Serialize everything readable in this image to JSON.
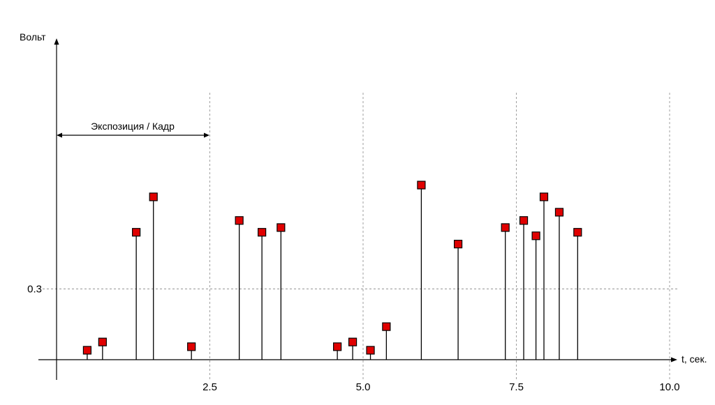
{
  "chart_data": {
    "type": "stem",
    "title": "",
    "xlabel": "t, сек.",
    "ylabel": "Вольт",
    "xlim": [
      0,
      10.0
    ],
    "ylim": [
      0,
      1.3
    ],
    "x_ticks": [
      2.5,
      5.0,
      7.5,
      10.0
    ],
    "x_tick_labels": [
      "2.5",
      "5.0",
      "7.5",
      "10.0"
    ],
    "y_ticks": [
      0.3
    ],
    "y_tick_labels": [
      "0.3"
    ],
    "grid": "dashed at ticks",
    "annotation": {
      "text": "Экспозиция / Кадр",
      "x_start": 0,
      "x_end": 2.5
    },
    "marker_color": "#e00000",
    "x": [
      0.5,
      0.75,
      1.3,
      1.58,
      2.2,
      2.98,
      3.35,
      3.66,
      4.58,
      4.83,
      5.12,
      5.38,
      5.95,
      6.55,
      7.32,
      7.62,
      7.82,
      7.95,
      8.2,
      8.5
    ],
    "y": [
      0.04,
      0.075,
      0.54,
      0.69,
      0.055,
      0.59,
      0.54,
      0.56,
      0.055,
      0.075,
      0.04,
      0.14,
      0.74,
      0.49,
      0.56,
      0.59,
      0.525,
      0.69,
      0.625,
      0.54
    ]
  }
}
